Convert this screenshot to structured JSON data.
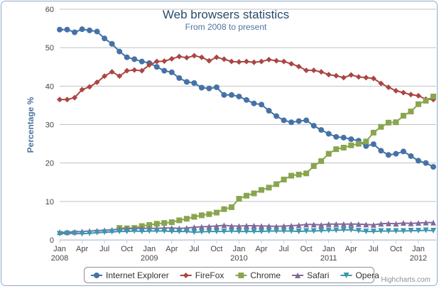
{
  "chart_data": {
    "type": "line",
    "title": "Web browsers statistics",
    "subtitle": "From 2008 to present",
    "y_label": "Percentage %",
    "credits": "Highcharts.com",
    "x": [
      "2008-01",
      "2008-02",
      "2008-03",
      "2008-04",
      "2008-05",
      "2008-06",
      "2008-07",
      "2008-08",
      "2008-09",
      "2008-10",
      "2008-11",
      "2008-12",
      "2009-01",
      "2009-02",
      "2009-03",
      "2009-04",
      "2009-05",
      "2009-06",
      "2009-07",
      "2009-08",
      "2009-09",
      "2009-10",
      "2009-11",
      "2009-12",
      "2010-01",
      "2010-02",
      "2010-03",
      "2010-04",
      "2010-05",
      "2010-06",
      "2010-07",
      "2010-08",
      "2010-09",
      "2010-10",
      "2010-11",
      "2010-12",
      "2011-01",
      "2011-02",
      "2011-03",
      "2011-04",
      "2011-05",
      "2011-06",
      "2011-07",
      "2011-08",
      "2011-09",
      "2011-10",
      "2011-11",
      "2011-12",
      "2012-01",
      "2012-02",
      "2012-03"
    ],
    "xlim": [
      "2008-01",
      "2012-03"
    ],
    "xticks": [
      {
        "value": "2008-01",
        "label": "Jan 2008"
      },
      {
        "value": "2008-04",
        "label": "Apr"
      },
      {
        "value": "2008-07",
        "label": "Jul"
      },
      {
        "value": "2008-10",
        "label": "Oct"
      },
      {
        "value": "2009-01",
        "label": "Jan 2009"
      },
      {
        "value": "2009-04",
        "label": "Apr"
      },
      {
        "value": "2009-07",
        "label": "Jul"
      },
      {
        "value": "2009-10",
        "label": "Oct"
      },
      {
        "value": "2010-01",
        "label": "Jan 2010"
      },
      {
        "value": "2010-04",
        "label": "Apr"
      },
      {
        "value": "2010-07",
        "label": "Jul"
      },
      {
        "value": "2010-10",
        "label": "Oct"
      },
      {
        "value": "2011-01",
        "label": "Jan 2011"
      },
      {
        "value": "2011-04",
        "label": "Apr"
      },
      {
        "value": "2011-07",
        "label": "Jul"
      },
      {
        "value": "2011-10",
        "label": "Oct"
      },
      {
        "value": "2012-01",
        "label": "Jan 2012"
      }
    ],
    "ylim": [
      0,
      60
    ],
    "yticks": [
      0,
      10,
      20,
      30,
      40,
      50,
      60
    ],
    "grid": true,
    "legend": "bottom",
    "series": [
      {
        "name": "Internet Explorer",
        "color": "#4572a7",
        "marker": "circle",
        "values": [
          54.7,
          54.7,
          54.0,
          54.8,
          54.5,
          54.2,
          52.4,
          51.0,
          49.0,
          47.5,
          47.0,
          46.4,
          46.0,
          45.0,
          44.0,
          43.6,
          42.1,
          41.1,
          40.8,
          39.6,
          39.4,
          39.7,
          37.7,
          37.7,
          37.3,
          36.4,
          35.5,
          35.2,
          33.6,
          32.2,
          31.1,
          30.6,
          30.9,
          31.1,
          29.7,
          28.6,
          27.6,
          26.8,
          26.6,
          26.2,
          25.8,
          24.4,
          24.9,
          23.2,
          22.1,
          22.4,
          23.0,
          21.8,
          20.6,
          20.0,
          19.0
        ]
      },
      {
        "name": "FireFox",
        "color": "#aa4643",
        "marker": "diamond",
        "values": [
          36.5,
          36.5,
          37.0,
          39.1,
          39.8,
          41.0,
          42.6,
          43.7,
          42.6,
          44.0,
          44.2,
          44.0,
          45.5,
          46.4,
          46.5,
          47.1,
          47.7,
          47.4,
          47.9,
          47.5,
          46.6,
          47.5,
          47.0,
          46.4,
          46.3,
          46.4,
          46.2,
          46.4,
          46.9,
          46.6,
          46.4,
          45.8,
          45.1,
          44.1,
          44.1,
          43.7,
          43.0,
          42.7,
          42.2,
          42.9,
          42.4,
          42.2,
          42.0,
          40.7,
          39.7,
          38.8,
          38.3,
          37.8,
          37.5,
          36.6,
          36.5
        ]
      },
      {
        "name": "Chrome",
        "color": "#89a54e",
        "marker": "square",
        "values": [
          null,
          null,
          null,
          null,
          null,
          null,
          null,
          null,
          3.1,
          3.0,
          3.1,
          3.6,
          3.9,
          4.2,
          4.4,
          4.6,
          5.1,
          5.5,
          6.0,
          6.4,
          6.7,
          7.1,
          8.0,
          8.5,
          10.7,
          11.5,
          12.1,
          13.0,
          13.6,
          14.5,
          15.7,
          16.7,
          17.0,
          17.3,
          19.2,
          20.5,
          22.4,
          23.6,
          24.0,
          24.6,
          25.0,
          25.6,
          27.9,
          29.4,
          30.5,
          30.6,
          32.3,
          33.4,
          35.3,
          36.2,
          37.3
        ]
      },
      {
        "name": "Safari",
        "color": "#80699b",
        "marker": "triangle",
        "values": [
          2.0,
          2.0,
          2.1,
          2.2,
          2.3,
          2.4,
          2.5,
          2.6,
          2.8,
          2.9,
          3.0,
          3.0,
          3.0,
          3.0,
          3.1,
          3.1,
          3.0,
          3.1,
          3.3,
          3.4,
          3.5,
          3.6,
          3.8,
          3.6,
          3.6,
          3.7,
          3.7,
          3.6,
          3.6,
          3.5,
          3.6,
          3.7,
          3.8,
          4.0,
          4.0,
          3.9,
          4.1,
          4.1,
          4.1,
          4.1,
          4.1,
          4.0,
          3.9,
          4.2,
          4.3,
          4.2,
          4.4,
          4.3,
          4.4,
          4.5,
          4.5
        ]
      },
      {
        "name": "Opera",
        "color": "#3d96ae",
        "marker": "triangle-down",
        "values": [
          1.6,
          1.7,
          1.7,
          1.6,
          1.7,
          1.9,
          2.0,
          2.1,
          2.2,
          2.2,
          2.3,
          2.2,
          2.3,
          2.3,
          2.3,
          2.2,
          2.2,
          2.2,
          2.0,
          2.1,
          2.2,
          2.2,
          2.2,
          2.3,
          2.2,
          2.2,
          2.2,
          2.2,
          2.3,
          2.3,
          2.3,
          2.3,
          2.2,
          2.3,
          2.3,
          2.4,
          2.5,
          2.5,
          2.6,
          2.6,
          2.4,
          2.2,
          2.2,
          2.3,
          2.3,
          2.3,
          2.3,
          2.4,
          2.4,
          2.5,
          2.4
        ]
      }
    ]
  }
}
